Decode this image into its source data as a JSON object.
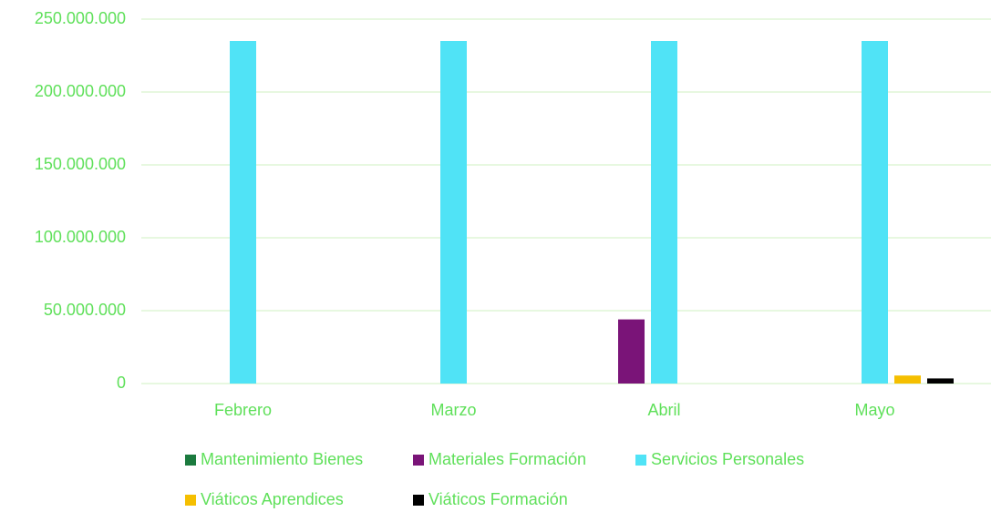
{
  "chart_data": {
    "type": "bar",
    "categories": [
      "Febrero",
      "Marzo",
      "Abril",
      "Mayo"
    ],
    "series": [
      {
        "name": "Mantenimiento Bienes",
        "color": "#1b7a3e",
        "values": [
          0,
          0,
          0,
          0
        ]
      },
      {
        "name": "Materiales Formación",
        "color": "#7a1478",
        "values": [
          0,
          0,
          44000000,
          0
        ]
      },
      {
        "name": "Servicios Personales",
        "color": "#50e3f6",
        "values": [
          235000000,
          235000000,
          235000000,
          235000000
        ]
      },
      {
        "name": "Viáticos Aprendices",
        "color": "#f5bf00",
        "values": [
          0,
          0,
          0,
          5500000
        ]
      },
      {
        "name": "Viáticos Formación",
        "color": "#000000",
        "values": [
          0,
          0,
          0,
          3500000
        ]
      }
    ],
    "ylim": [
      0,
      250000000
    ],
    "yticks": [
      0,
      {
        "value": 50000000,
        "label": "50.000.000"
      },
      {
        "value": 100000000,
        "label": "100.000.000"
      },
      {
        "value": 150000000,
        "label": "150.000.000"
      },
      {
        "value": 200000000,
        "label": "200.000.000"
      },
      {
        "value": 250000000,
        "label": "250.000.000"
      }
    ],
    "grid": true
  }
}
